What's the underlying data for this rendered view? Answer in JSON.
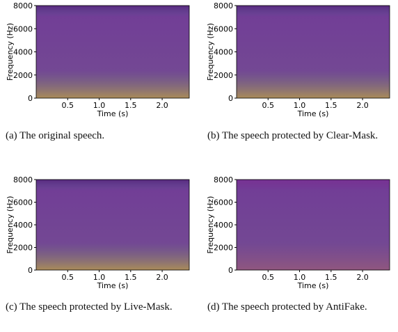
{
  "chart_data": [
    {
      "type": "heatmap",
      "xlabel": "Time (s)",
      "ylabel": "Frequency (Hz)",
      "xlim": [
        0,
        2.43
      ],
      "ylim": [
        0,
        8000
      ],
      "xticks": [
        0.5,
        {
          "value": 1,
          "label": "1.0"
        },
        1.5,
        {
          "value": 2,
          "label": "2.0"
        }
      ],
      "yticks": [
        0,
        2000,
        4000,
        6000,
        8000
      ],
      "caption": "(a) The original speech."
    },
    {
      "type": "heatmap",
      "xlabel": "Time (s)",
      "ylabel": "Frequency (Hz)",
      "xlim": [
        0,
        2.43
      ],
      "ylim": [
        0,
        8000
      ],
      "xticks": [
        0.5,
        {
          "value": 1,
          "label": "1.0"
        },
        1.5,
        {
          "value": 2,
          "label": "2.0"
        }
      ],
      "yticks": [
        0,
        2000,
        4000,
        6000,
        8000
      ],
      "caption": "(b) The speech protected by Clear-Mask."
    },
    {
      "type": "heatmap",
      "xlabel": "Time (s)",
      "ylabel": "Frequency (Hz)",
      "xlim": [
        0,
        2.43
      ],
      "ylim": [
        0,
        8000
      ],
      "xticks": [
        0.5,
        {
          "value": 1,
          "label": "1.0"
        },
        1.5,
        {
          "value": 2,
          "label": "2.0"
        }
      ],
      "yticks": [
        0,
        2000,
        4000,
        6000,
        8000
      ],
      "caption": "(c) The speech protected by Live-Mask."
    },
    {
      "type": "heatmap",
      "xlabel": "Time (s)",
      "ylabel": "Frequency (Hz)",
      "xlim": [
        0,
        2.43
      ],
      "ylim": [
        0,
        8000
      ],
      "xticks": [
        0.5,
        {
          "value": 1,
          "label": "1.0"
        },
        1.5,
        {
          "value": 2,
          "label": "2.0"
        }
      ],
      "yticks": [
        0,
        2000,
        4000,
        6000,
        8000
      ],
      "caption": "(d) The speech protected by AntiFake."
    }
  ]
}
